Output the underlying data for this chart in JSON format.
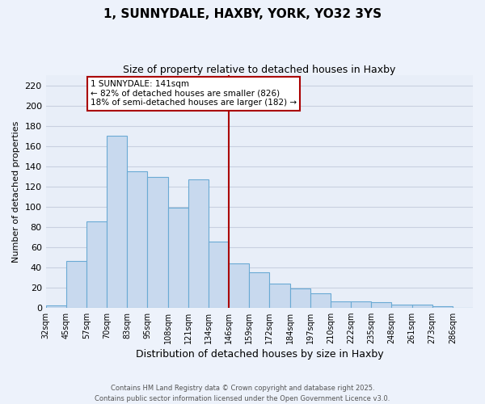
{
  "title": "1, SUNNYDALE, HAXBY, YORK, YO32 3YS",
  "subtitle": "Size of property relative to detached houses in Haxby",
  "xlabel": "Distribution of detached houses by size in Haxby",
  "ylabel": "Number of detached properties",
  "bar_labels": [
    "32sqm",
    "45sqm",
    "57sqm",
    "70sqm",
    "83sqm",
    "95sqm",
    "108sqm",
    "121sqm",
    "134sqm",
    "146sqm",
    "159sqm",
    "172sqm",
    "184sqm",
    "197sqm",
    "210sqm",
    "222sqm",
    "235sqm",
    "248sqm",
    "261sqm",
    "273sqm",
    "286sqm"
  ],
  "bar_values": [
    2,
    46,
    85,
    170,
    135,
    129,
    99,
    127,
    65,
    44,
    35,
    24,
    19,
    14,
    6,
    6,
    5,
    3,
    3,
    1,
    0
  ],
  "bar_color": "#c8d9ee",
  "bar_edge_color": "#6aaad4",
  "marker_color": "#aa0000",
  "annotation_line1": "1 SUNNYDALE: 141sqm",
  "annotation_line2": "← 82% of detached houses are smaller (826)",
  "annotation_line3": "18% of semi-detached houses are larger (182) →",
  "ylim": [
    0,
    230
  ],
  "yticks": [
    0,
    20,
    40,
    60,
    80,
    100,
    120,
    140,
    160,
    180,
    200,
    220
  ],
  "footer_line1": "Contains HM Land Registry data © Crown copyright and database right 2025.",
  "footer_line2": "Contains public sector information licensed under the Open Government Licence v3.0.",
  "bg_color": "#edf2fb",
  "grid_color": "#c8d0e0",
  "plot_bg_color": "#e8eef8"
}
